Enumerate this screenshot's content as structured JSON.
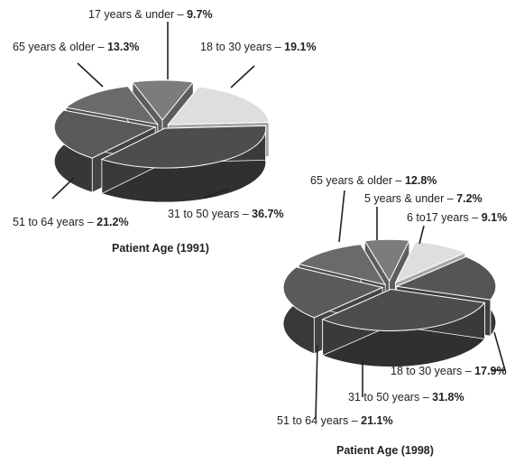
{
  "chart_data": [
    {
      "type": "pie",
      "title": "Patient Age (1991)",
      "slices": [
        {
          "label": "17 years & under",
          "value": 9.7,
          "display": "9.7%",
          "color": "#7c7c7c"
        },
        {
          "label": "18 to 30 years",
          "value": 19.1,
          "display": "19.1%",
          "color": "#dedede"
        },
        {
          "label": "31 to 50 years",
          "value": 36.7,
          "display": "36.7%",
          "color": "#4d4d4d"
        },
        {
          "label": "51 to 64 years",
          "value": 21.2,
          "display": "21.2%",
          "color": "#595959"
        },
        {
          "label": "65 years & older",
          "value": 13.3,
          "display": "13.3%",
          "color": "#6a6a6a"
        }
      ]
    },
    {
      "type": "pie",
      "title": "Patient Age (1998)",
      "slices": [
        {
          "label": "5 years & under",
          "value": 7.2,
          "display": "7.2%",
          "color": "#7c7c7c"
        },
        {
          "label": "6 to17 years",
          "value": 9.1,
          "display": "9.1%",
          "color": "#dedede"
        },
        {
          "label": "18 to 30 years",
          "value": 17.9,
          "display": "17.9%",
          "color": "#555555"
        },
        {
          "label": "31 to 50 years",
          "value": 31.8,
          "display": "31.8%",
          "color": "#4d4d4d"
        },
        {
          "label": "51 to 64 years",
          "value": 21.1,
          "display": "21.1%",
          "color": "#5a5a5a"
        },
        {
          "label": "65 years & older",
          "value": 12.8,
          "display": "12.8%",
          "color": "#6a6a6a"
        }
      ]
    }
  ]
}
